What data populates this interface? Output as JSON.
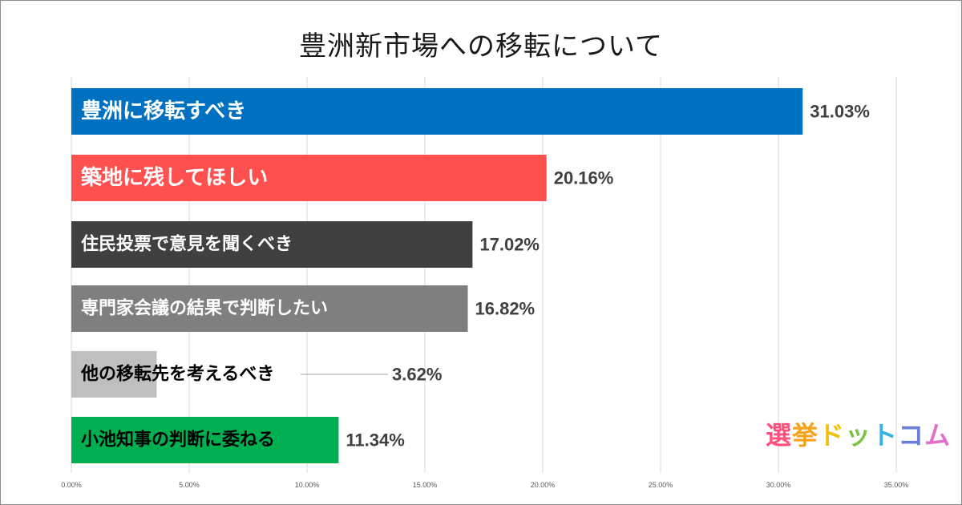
{
  "chart_data": {
    "type": "bar",
    "orientation": "horizontal",
    "title": "豊洲新市場への移転について",
    "categories": [
      "豊洲に移転すべき",
      "築地に残してほしい",
      "住民投票で意見を聞くべき",
      "専門家会議の結果で判断したい",
      "他の移転先を考えるべき",
      "小池知事の判断に委ねる"
    ],
    "values": [
      31.03,
      20.16,
      17.02,
      16.82,
      3.62,
      11.34
    ],
    "value_labels": [
      "31.03%",
      "20.16%",
      "17.02%",
      "16.82%",
      "3.62%",
      "11.34%"
    ],
    "bar_colors": [
      "#0070c0",
      "#ff5050",
      "#404040",
      "#7f7f7f",
      "#bfbfbf",
      "#00b050"
    ],
    "label_colors": [
      "#ffffff",
      "#ffffff",
      "#ffffff",
      "#ffffff",
      "#000000",
      "#000000"
    ],
    "xlim": [
      0,
      35
    ],
    "x_ticks": [
      "0.00%",
      "5.00%",
      "10.00%",
      "15.00%",
      "20.00%",
      "25.00%",
      "30.00%",
      "35.00%"
    ],
    "grid": true,
    "xlabel": "",
    "ylabel": ""
  },
  "logo": {
    "chars": [
      "選",
      "挙",
      "ド",
      "ッ",
      "ト",
      "コ",
      "ム"
    ],
    "colors": [
      "#ff4f7b",
      "#f7a21b",
      "#f2c20e",
      "#7ec242",
      "#34b3e4",
      "#6a7fd6",
      "#e36fc6"
    ]
  }
}
